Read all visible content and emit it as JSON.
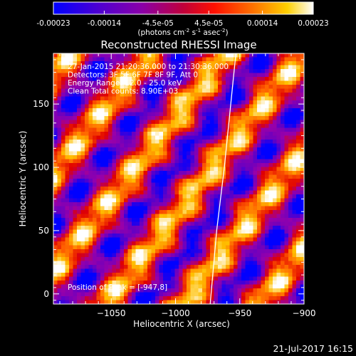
{
  "colorbar": {
    "ticks": [
      -0.00023,
      -0.00014,
      -4.5e-05,
      4.5e-05,
      0.00014,
      0.00023
    ],
    "tick_labels": [
      "-0.00023",
      "-0.00014",
      "-4.5e-05",
      "4.5e-05",
      "0.00014",
      "0.00023"
    ],
    "units_label": "(photons cm",
    "units_sup1": "-2",
    "units_mid1": " s",
    "units_sup2": "-1",
    "units_mid2": " asec",
    "units_sup3": "-2",
    "units_end": ")"
  },
  "chart_data": {
    "type": "heatmap",
    "title": "Reconstructed RHESSI Image",
    "xlabel": "Heliocentric X (arcsec)",
    "ylabel": "Heliocentric Y (arcsec)",
    "xlim": [
      -1095,
      -900
    ],
    "ylim": [
      -8,
      190
    ],
    "xticks": [
      -1050,
      -1000,
      -950,
      -900
    ],
    "yticks": [
      0,
      50,
      100,
      150
    ],
    "xtick_labels": [
      "−1050",
      "−1000",
      "−950",
      "−900"
    ],
    "ytick_labels": [
      "0",
      "50",
      "100",
      "150"
    ],
    "zlim": [
      -0.00023,
      0.00023
    ],
    "colormap": [
      "#0000ff",
      "#6a00c0",
      "#9a00a8",
      "#e00000",
      "#ff6000",
      "#ffc000",
      "#ffffff"
    ],
    "annotations": [
      "27-Jan-2015 21:20:36.000 to 21:30:36.000",
      "Detectors: 3F 5F 6F 7F 8F 9F, Att 0",
      "Energy Range: 12.0 - 25.0 keV",
      "Clean     Total counts: 8.90E+03"
    ],
    "peak_label": "Position of Peak = [-947,8]",
    "limb_curve": [
      [
        -973,
        -8
      ],
      [
        -968,
        50
      ],
      [
        -962,
        100
      ],
      [
        -957,
        150
      ],
      [
        -953,
        190
      ]
    ]
  },
  "footer": {
    "timestamp": "21-Jul-2017 16:15"
  }
}
